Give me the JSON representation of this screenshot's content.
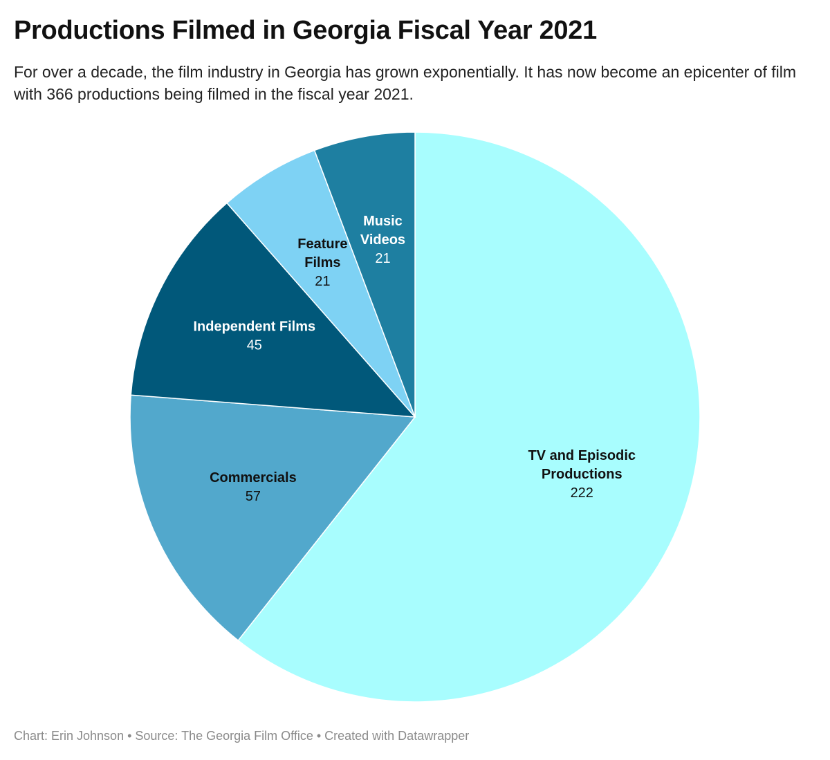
{
  "header": {
    "title": "Productions Filmed in Georgia Fiscal Year 2021",
    "subtitle": "For over a decade, the film industry in Georgia has grown exponentially. It has now become an epicenter of film with 366 productions being filmed in the fiscal year 2021."
  },
  "chart_data": {
    "type": "pie",
    "title": "Productions Filmed in Georgia Fiscal Year 2021",
    "slices": [
      {
        "label": "TV and Episodic Productions",
        "label_lines": [
          "TV and Episodic",
          "Productions"
        ],
        "value": 222,
        "color": "#a8fdfe",
        "text_color": "#111111"
      },
      {
        "label": "Commercials",
        "label_lines": [
          "Commercials"
        ],
        "value": 57,
        "color": "#52a8cc",
        "text_color": "#111111"
      },
      {
        "label": "Independent Films",
        "label_lines": [
          "Independent Films"
        ],
        "value": 45,
        "color": "#01587a",
        "text_color": "#ffffff"
      },
      {
        "label": "Feature Films",
        "label_lines": [
          "Feature",
          "Films"
        ],
        "value": 21,
        "color": "#7ed2f4",
        "text_color": "#111111"
      },
      {
        "label": "Music Videos",
        "label_lines": [
          "Music",
          "Videos"
        ],
        "value": 21,
        "color": "#1e7fa1",
        "text_color": "#ffffff"
      }
    ]
  },
  "footer": {
    "credit": "Chart: Erin Johnson • Source: The Georgia Film Office • Created with Datawrapper"
  }
}
